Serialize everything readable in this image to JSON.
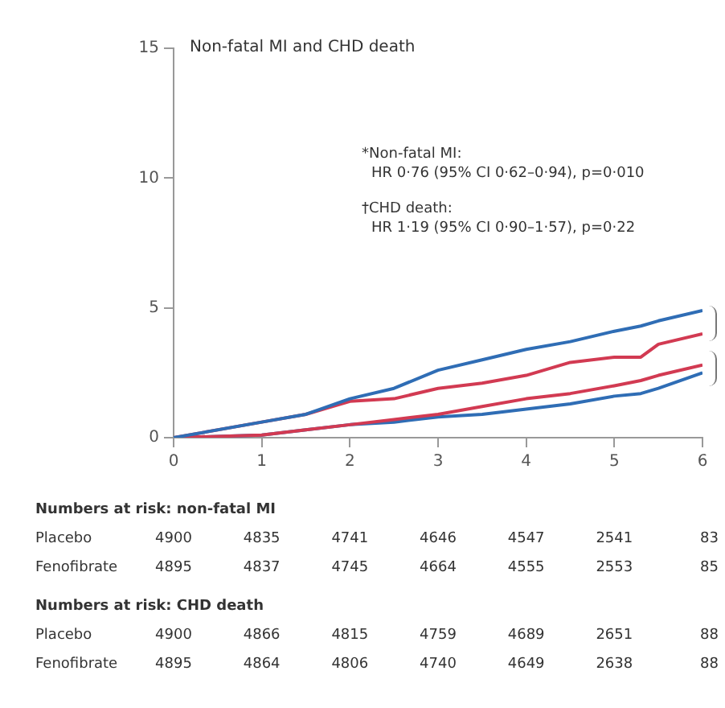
{
  "chart_data": {
    "type": "line",
    "title": "Non-fatal MI and CHD death",
    "x": [
      0,
      1,
      1.5,
      2,
      2.5,
      3,
      3.5,
      4,
      4.5,
      5,
      5.3,
      5.5,
      6
    ],
    "series": [
      {
        "color": "#2f6db5",
        "values": [
          0,
          0.6,
          0.9,
          1.5,
          1.9,
          2.6,
          3.0,
          3.4,
          3.7,
          4.1,
          4.3,
          4.5,
          4.9
        ]
      },
      {
        "color": "#d23a52",
        "values": [
          0,
          0.6,
          0.9,
          1.4,
          1.5,
          1.9,
          2.1,
          2.4,
          2.9,
          3.1,
          3.1,
          3.6,
          4.0
        ]
      },
      {
        "color": "#d23a52",
        "values": [
          0,
          0.1,
          0.3,
          0.5,
          0.7,
          0.9,
          1.2,
          1.5,
          1.7,
          2.0,
          2.2,
          2.4,
          2.8
        ]
      },
      {
        "color": "#2f6db5",
        "values": [
          0,
          0.1,
          0.3,
          0.5,
          0.6,
          0.8,
          0.9,
          1.1,
          1.3,
          1.6,
          1.7,
          1.9,
          2.5
        ]
      }
    ],
    "xlim": [
      0,
      6
    ],
    "xticks": [
      0,
      1,
      2,
      3,
      4,
      5,
      6
    ],
    "ylim": [
      0,
      15
    ],
    "yticks": [
      0,
      5,
      10,
      15
    ],
    "grid": false,
    "legend": false,
    "marker": "none",
    "line_style": "solid",
    "annotations": [
      "*Non-fatal MI:",
      "HR 0·76 (95% CI 0·62–0·94), p=0·010",
      "†CHD death:",
      "HR 1·19 (95% CI 0·90–1·57), p=0·22",
      "Numbers at risk: non-fatal MI",
      "Placebo 4900 4835 4741 4646 4547 2541 83",
      "Fenofibrate 4895 4837 4745 4664 4555 2553 85",
      "Numbers at risk: CHD death",
      "Placebo 4900 4866 4815 4759 4689 2651 88",
      "Fenofibrate 4895 4864 4806 4740 4649 2638 88"
    ]
  }
}
